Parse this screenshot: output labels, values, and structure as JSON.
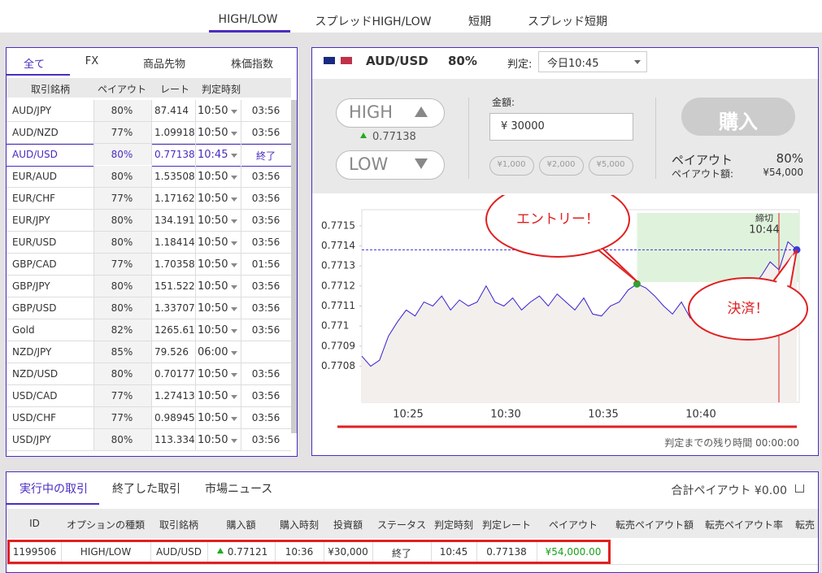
{
  "top_tabs": [
    "HIGH/LOW",
    "スプレッドHIGH/LOW",
    "短期",
    "スプレッド短期"
  ],
  "left_panel": {
    "tabs": [
      "全て",
      "FX",
      "商品先物",
      "株価指数"
    ],
    "headers": [
      "取引銘柄",
      "ペイアウト",
      "レート",
      "判定時刻"
    ],
    "rows": [
      [
        "AUD/JPY",
        "80%",
        "87.414",
        "10:50",
        "03:56"
      ],
      [
        "AUD/NZD",
        "77%",
        "1.09918",
        "10:50",
        "03:56"
      ],
      [
        "AUD/USD",
        "80%",
        "0.77138",
        "10:45",
        "終了"
      ],
      [
        "EUR/AUD",
        "80%",
        "1.53508",
        "10:50",
        "03:56"
      ],
      [
        "EUR/CHF",
        "77%",
        "1.17162",
        "10:50",
        "03:56"
      ],
      [
        "EUR/JPY",
        "80%",
        "134.191",
        "10:50",
        "03:56"
      ],
      [
        "EUR/USD",
        "80%",
        "1.18414",
        "10:50",
        "03:56"
      ],
      [
        "GBP/CAD",
        "77%",
        "1.70358",
        "10:50",
        "01:56"
      ],
      [
        "GBP/JPY",
        "80%",
        "151.522",
        "10:50",
        "03:56"
      ],
      [
        "GBP/USD",
        "80%",
        "1.33707",
        "10:50",
        "03:56"
      ],
      [
        "Gold",
        "82%",
        "1265.61",
        "10:50",
        "03:56"
      ],
      [
        "NZD/JPY",
        "85%",
        "79.526",
        "06:00",
        null
      ],
      [
        "NZD/USD",
        "80%",
        "0.70177",
        "10:50",
        "03:56"
      ],
      [
        "USD/CAD",
        "77%",
        "1.27413",
        "10:50",
        "03:56"
      ],
      [
        "USD/CHF",
        "77%",
        "0.98945",
        "10:50",
        "03:56"
      ],
      [
        "USD/JPY",
        "80%",
        "113.334",
        "10:50",
        "03:56"
      ]
    ],
    "selected_row": 2
  },
  "trade_panel": {
    "asset": "AUD/USD",
    "payout": "80%",
    "judge_label": "判定:",
    "judge_value": "今日10:45",
    "high": "HIGH",
    "high_rate": "0.77138",
    "low": "LOW",
    "amount_label": "金額:",
    "amount": "¥ 30000",
    "quick_amounts": [
      "¥1,000",
      "¥2,000",
      "¥5,000"
    ],
    "buy": "購入",
    "payout_label": "ペイアウト",
    "payout_value": "80%",
    "payout_amount_label": "ペイアウト額:",
    "payout_amount": "¥54,000",
    "remaining": "判定までの残り時間 00:00:00"
  },
  "chart": {
    "type": "line",
    "ylim": [
      0.77062,
      0.77158
    ],
    "yticks": [
      0.7715,
      0.7714,
      0.7713,
      0.7712,
      0.7711,
      0.771,
      0.7709,
      0.7708
    ],
    "xticks": [
      "10:25",
      "10:30",
      "10:35",
      "10:40"
    ],
    "line_color": "#3a1fd0",
    "values": [
      0.77085,
      0.7708,
      0.77083,
      0.77095,
      0.77102,
      0.77108,
      0.77105,
      0.77112,
      0.7711,
      0.77115,
      0.77108,
      0.77113,
      0.7711,
      0.77112,
      0.7712,
      0.77112,
      0.7711,
      0.77114,
      0.77108,
      0.77112,
      0.77115,
      0.7711,
      0.77116,
      0.77112,
      0.77108,
      0.77114,
      0.77106,
      0.77105,
      0.7711,
      0.77112,
      0.77118,
      0.77121,
      0.77119,
      0.77115,
      0.7711,
      0.77106,
      0.77112,
      0.77104,
      0.7711,
      0.77107,
      0.77112,
      0.77118,
      0.77116,
      0.77122,
      0.7712,
      0.77125,
      0.77132,
      0.77128,
      0.77142,
      0.77138
    ],
    "entry_index": 31,
    "close_label": "締切",
    "close_time": "10:44",
    "callout_entry": "エントリー！",
    "callout_exit": "決済！"
  },
  "bottom_panel": {
    "tabs": [
      "実行中の取引",
      "終了した取引",
      "市場ニュース"
    ],
    "total": "合計ペイアウト ¥0.00",
    "headers": [
      "ID",
      "オプションの種類",
      "取引銘柄",
      "購入額",
      "購入時刻",
      "投資額",
      "ステータス",
      "判定時刻",
      "判定レート",
      "ペイアウト",
      "転売ペイアウト額",
      "転売ペイアウト率",
      "転売"
    ],
    "row": [
      "1199506",
      "HIGH/LOW",
      "AUD/USD",
      "0.77121",
      "10:36",
      "¥30,000",
      "終了",
      "10:45",
      "0.77138",
      "¥54,000.00"
    ]
  }
}
